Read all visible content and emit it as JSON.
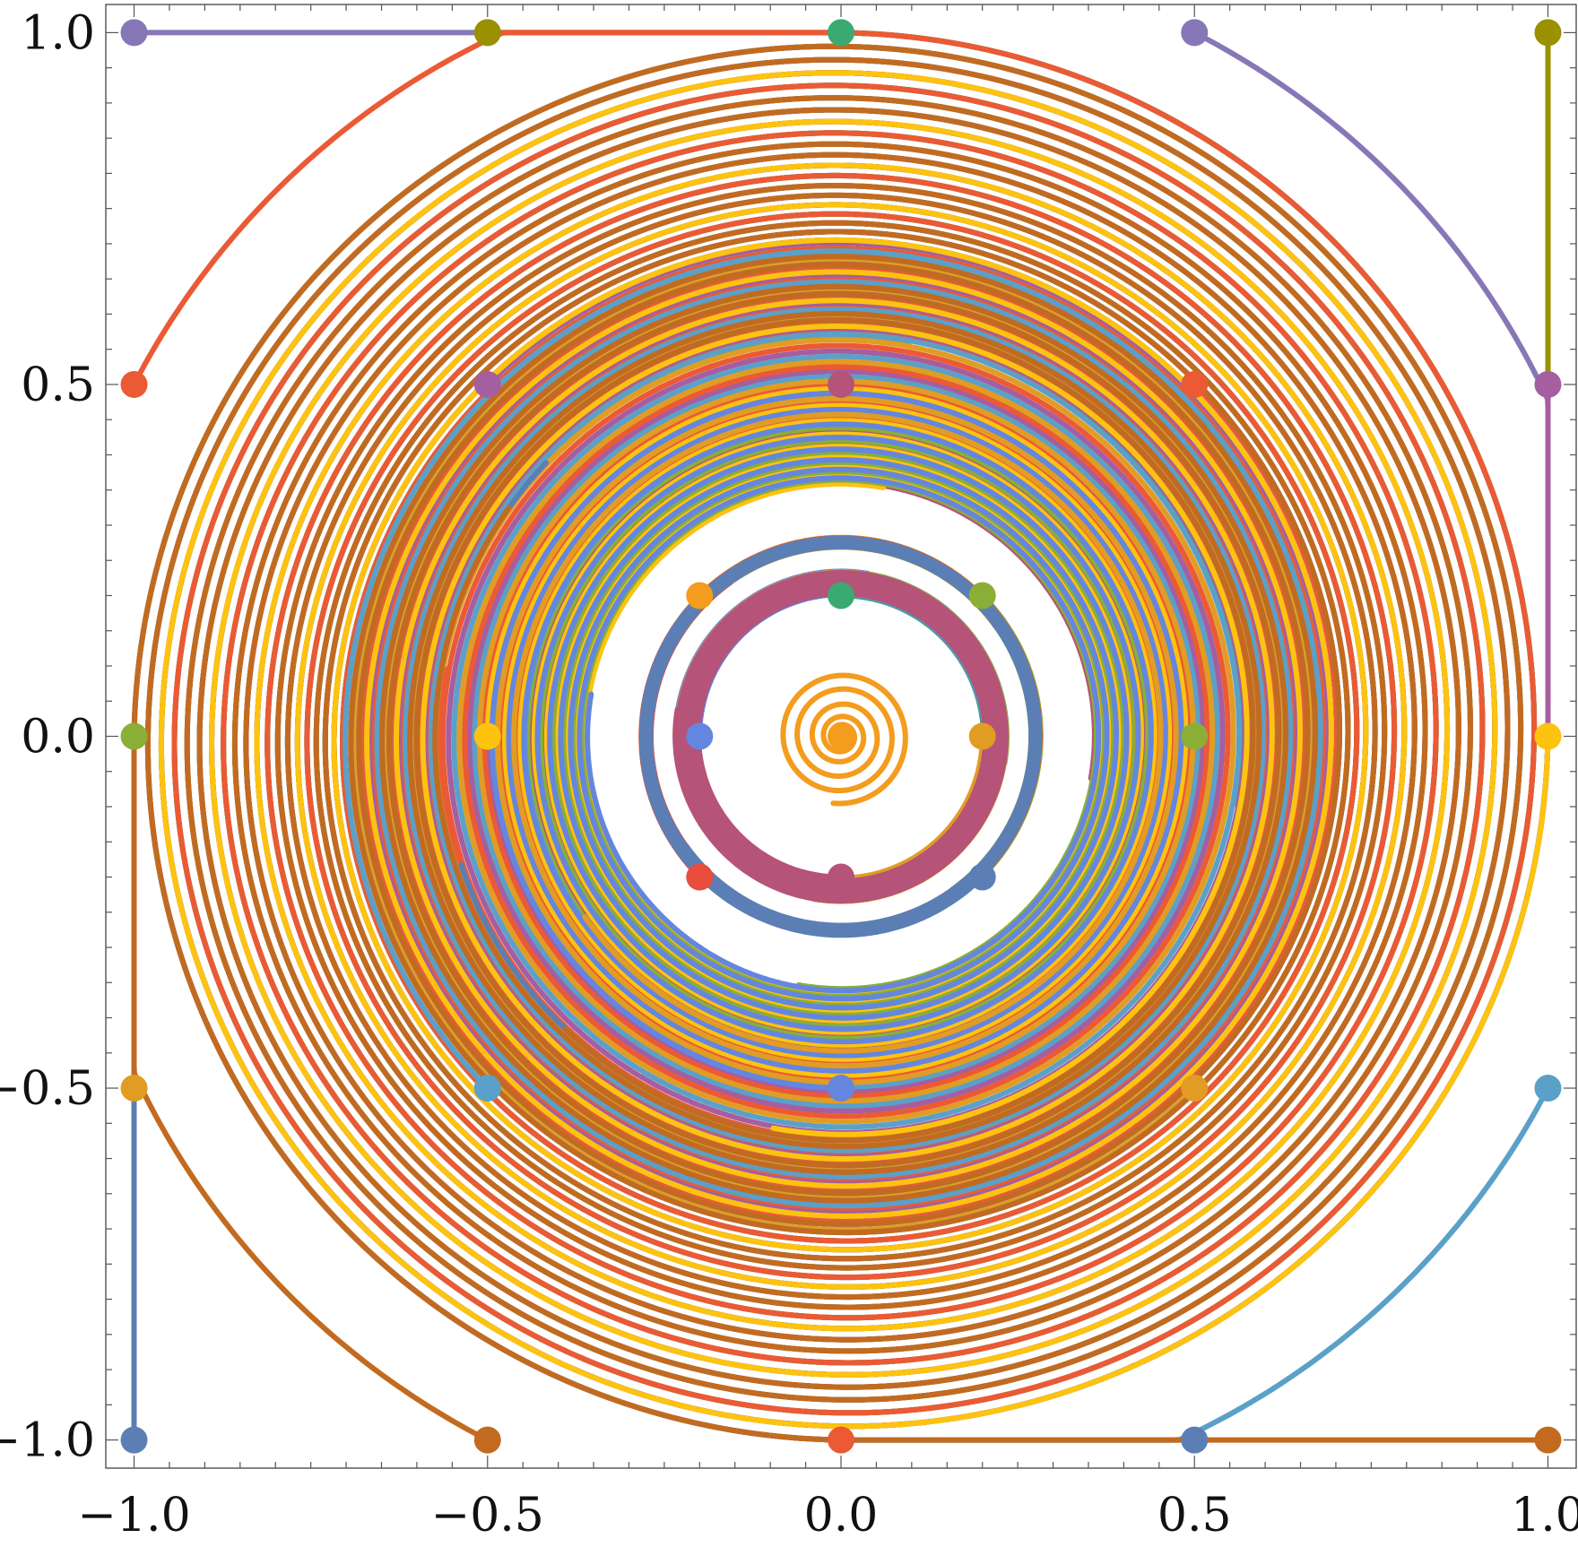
{
  "chart_data": {
    "type": "line",
    "title": "",
    "xlabel": "",
    "ylabel": "",
    "xlim": [
      -1.04,
      1.04
    ],
    "ylim": [
      -1.04,
      1.04
    ],
    "grid": false,
    "x_ticks": [
      -1.0,
      -0.5,
      0.0,
      0.5,
      1.0
    ],
    "y_ticks": [
      -1.0,
      -0.5,
      0.0,
      0.5,
      1.0
    ],
    "x_tick_labels": [
      "−1.0",
      "−0.5",
      "0.0",
      "0.5",
      "1.0"
    ],
    "y_tick_labels": [
      "−1.0",
      "−0.5",
      "0.0",
      "0.5",
      "1.0"
    ],
    "box_bounds": [
      -1.0,
      1.0
    ],
    "spiral_center": [
      0.0,
      0.0
    ],
    "limit_cycle_radius": 0.2,
    "trajectories": [
      {
        "start": [
          -1.0,
          1.0
        ],
        "color": "#8877B7"
      },
      {
        "start": [
          -0.5,
          1.0
        ],
        "color": "#9A9000"
      },
      {
        "start": [
          0.0,
          1.0
        ],
        "color": "#3BAA72"
      },
      {
        "start": [
          0.5,
          1.0
        ],
        "color": "#8877B7"
      },
      {
        "start": [
          1.0,
          1.0
        ],
        "color": "#9A9000"
      },
      {
        "start": [
          -1.0,
          0.5
        ],
        "color": "#EB5A35"
      },
      {
        "start": [
          -0.5,
          0.5
        ],
        "color": "#A55EA0"
      },
      {
        "start": [
          0.0,
          0.5
        ],
        "color": "#B55378"
      },
      {
        "start": [
          0.5,
          0.5
        ],
        "color": "#EB5A35"
      },
      {
        "start": [
          1.0,
          0.5
        ],
        "color": "#A55EA0"
      },
      {
        "start": [
          -0.2,
          0.2
        ],
        "color": "#F39C1E"
      },
      {
        "start": [
          0.0,
          0.2
        ],
        "color": "#3BAA72"
      },
      {
        "start": [
          0.2,
          0.2
        ],
        "color": "#8BAE36"
      },
      {
        "start": [
          -1.0,
          0.0
        ],
        "color": "#8BAE36"
      },
      {
        "start": [
          -0.5,
          0.0
        ],
        "color": "#FDC30F"
      },
      {
        "start": [
          -0.2,
          0.0
        ],
        "color": "#6586DF"
      },
      {
        "start": [
          0.0,
          0.0
        ],
        "color": "#F39C1E"
      },
      {
        "start": [
          0.2,
          0.0
        ],
        "color": "#E19C24"
      },
      {
        "start": [
          0.5,
          0.0
        ],
        "color": "#8BAE36"
      },
      {
        "start": [
          1.0,
          0.0
        ],
        "color": "#FDC30F"
      },
      {
        "start": [
          -0.2,
          -0.2
        ],
        "color": "#E74C3C"
      },
      {
        "start": [
          0.0,
          -0.2
        ],
        "color": "#B55378"
      },
      {
        "start": [
          0.2,
          -0.2
        ],
        "color": "#5B7FB5"
      },
      {
        "start": [
          -1.0,
          -0.5
        ],
        "color": "#E19C24"
      },
      {
        "start": [
          -0.5,
          -0.5
        ],
        "color": "#5BA0C8"
      },
      {
        "start": [
          0.0,
          -0.5
        ],
        "color": "#6586DF"
      },
      {
        "start": [
          0.5,
          -0.5
        ],
        "color": "#E19C24"
      },
      {
        "start": [
          1.0,
          -0.5
        ],
        "color": "#5BA0C8"
      },
      {
        "start": [
          -1.0,
          -1.0
        ],
        "color": "#5B7FB5"
      },
      {
        "start": [
          -0.5,
          -1.0
        ],
        "color": "#C26B20"
      },
      {
        "start": [
          0.0,
          -1.0
        ],
        "color": "#EB5A35"
      },
      {
        "start": [
          0.5,
          -1.0
        ],
        "color": "#5B7FB5"
      },
      {
        "start": [
          1.0,
          -1.0
        ],
        "color": "#C26B20"
      }
    ]
  }
}
